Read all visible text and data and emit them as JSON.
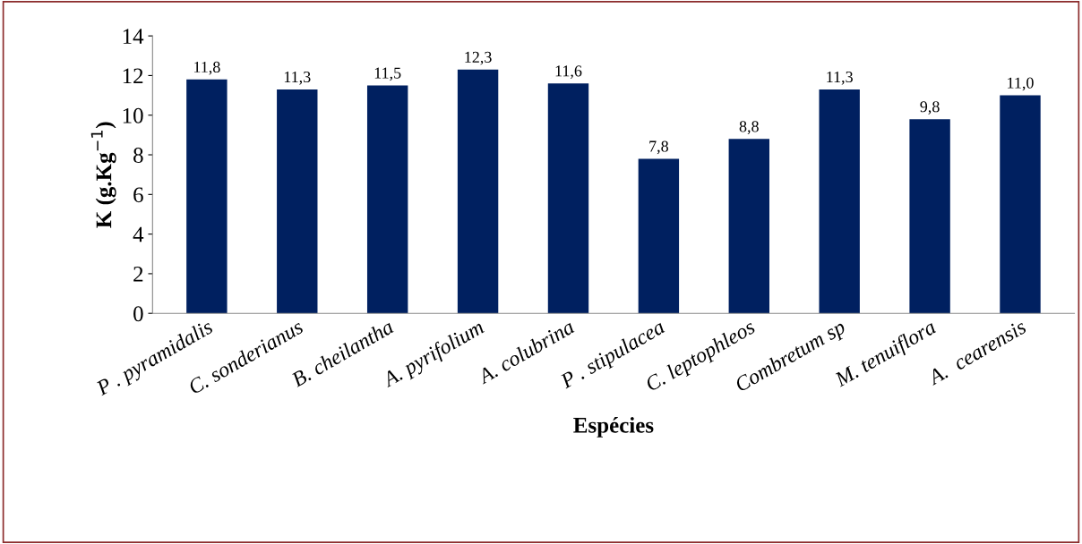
{
  "chart_data": {
    "type": "bar",
    "xlabel": "Espécies",
    "ylabel": "K (g.Kg$^{−1}$)",
    "categories": [
      "P . pyramidalis",
      "C. sonderianus",
      "B. cheilantha",
      "A. pyrifolium",
      "A. colubrina",
      "P . stipulacea",
      "C. leptophleos",
      "Combretum sp",
      "M. tenuiflora",
      "A.  cearensis"
    ],
    "values": [
      11.8,
      11.3,
      11.5,
      12.3,
      11.6,
      7.8,
      8.8,
      11.3,
      9.8,
      11.0
    ],
    "value_labels": [
      "11,8",
      "11,3",
      "11,5",
      "12,3",
      "11,6",
      "7,8",
      "8,8",
      "11,3",
      "9,8",
      "11,0"
    ],
    "color": "#002060",
    "ylim": [
      0,
      14
    ],
    "yticks": [
      0,
      2,
      4,
      6,
      8,
      10,
      12,
      14
    ],
    "grid": false,
    "legend": false
  }
}
